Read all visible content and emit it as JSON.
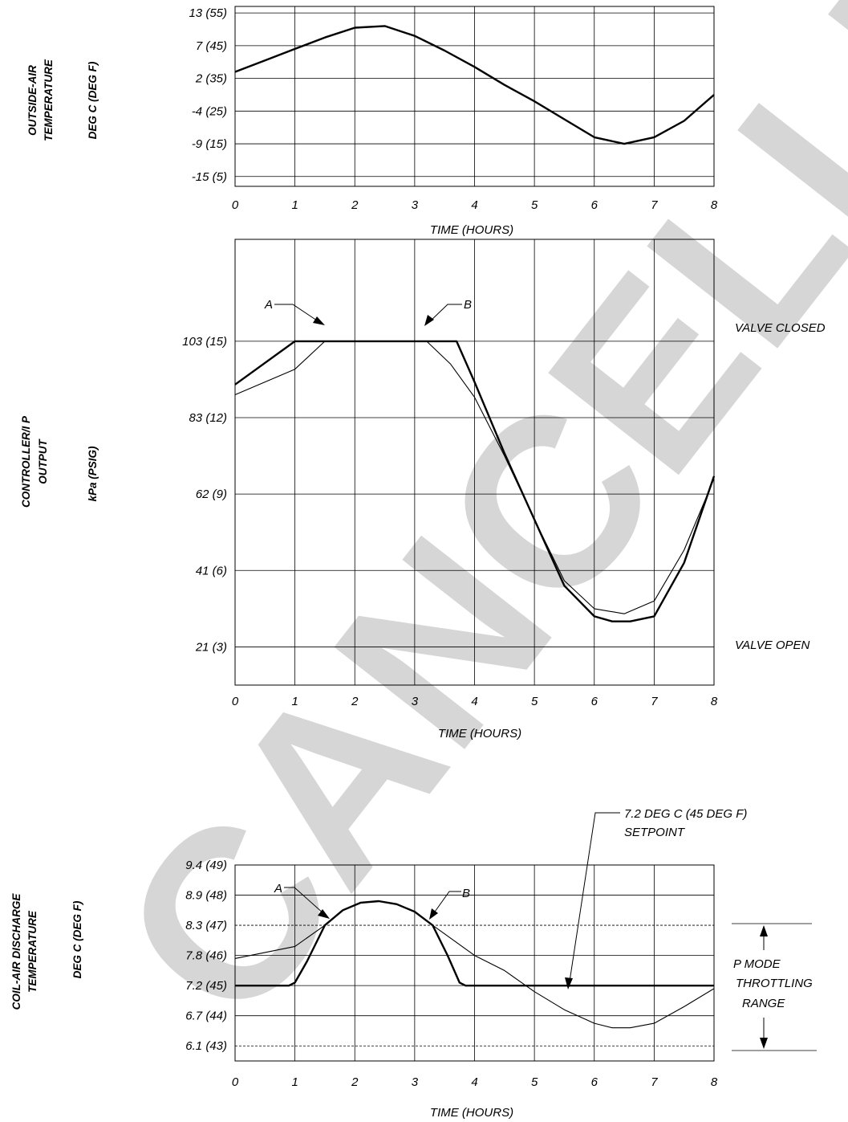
{
  "watermark": "CANCELLED",
  "chart_data": [
    {
      "type": "line",
      "ylabel_lines": [
        "OUTSIDE-AIR",
        "TEMPERATURE"
      ],
      "yunit": "DEG C (DEG F)",
      "xlabel": "TIME (HOURS)",
      "x_ticks": [
        "0",
        "1",
        "2",
        "3",
        "4",
        "5",
        "6",
        "7",
        "8"
      ],
      "y_ticks": [
        "13 (55)",
        "7 (45)",
        "2 (35)",
        "-4 (25)",
        "-9 (15)",
        "-15 (5)"
      ],
      "xlim": [
        0,
        8
      ],
      "ylim": [
        2,
        57
      ],
      "series": [
        {
          "style": "thick",
          "x": [
            0,
            0.5,
            1,
            1.5,
            2,
            2.5,
            3,
            3.5,
            4,
            4.5,
            5,
            5.5,
            6,
            6.5,
            7,
            7.5,
            8
          ],
          "y": [
            37,
            40.5,
            44,
            47.5,
            50.5,
            51,
            48,
            43.5,
            38.5,
            33,
            28,
            22.5,
            17,
            15,
            17,
            22,
            30
          ]
        }
      ]
    },
    {
      "type": "line",
      "ylabel_lines": [
        "CONTROLLER/I P",
        "OUTPUT"
      ],
      "yunit": "kPa (PSIG)",
      "xlabel": "TIME (HOURS)",
      "x_ticks": [
        "0",
        "1",
        "2",
        "3",
        "4",
        "5",
        "6",
        "7",
        "8"
      ],
      "y_ticks": [
        "103 (15)",
        "83 (12)",
        "62 (9)",
        "41 (6)",
        "21 (3)"
      ],
      "xlim": [
        0,
        8
      ],
      "ylim": [
        1.5,
        19
      ],
      "right_labels": [
        "VALVE CLOSED",
        "VALVE OPEN"
      ],
      "annotations": [
        "A",
        "B"
      ],
      "series": [
        {
          "style": "thick",
          "x": [
            0,
            1,
            1.5,
            2,
            2.5,
            3,
            3.5,
            3.7,
            4,
            4.5,
            5,
            5.5,
            6,
            6.3,
            6.6,
            7,
            7.5,
            8
          ],
          "y": [
            13.3,
            15,
            15,
            15,
            15,
            15,
            15,
            15,
            13.4,
            10.6,
            8,
            5.4,
            4.2,
            4.0,
            4.0,
            4.2,
            6.3,
            9.7
          ]
        },
        {
          "style": "thin",
          "x": [
            0,
            1,
            1.5,
            2,
            2.5,
            3,
            3.2,
            3.6,
            4,
            4.5,
            5,
            5.5,
            6,
            6.5,
            7,
            7.5,
            8
          ],
          "y": [
            12.9,
            13.9,
            15,
            15,
            15,
            15,
            15,
            14.1,
            12.8,
            10.5,
            8,
            5.6,
            4.5,
            4.3,
            4.8,
            6.8,
            9.6
          ]
        }
      ]
    },
    {
      "type": "line",
      "ylabel_lines": [
        "COIL-AIR DISCHARGE",
        "TEMPERATURE"
      ],
      "yunit": "DEG C (DEG F)",
      "xlabel": "TIME (HOURS)",
      "x_ticks": [
        "0",
        "1",
        "2",
        "3",
        "4",
        "5",
        "6",
        "7",
        "8"
      ],
      "y_ticks": [
        "9.4 (49)",
        "8.9 (48)",
        "8.3 (47)",
        "7.8 (46)",
        "7.2 (45)",
        "6.7 (44)",
        "6.1 (43)"
      ],
      "xlim": [
        0,
        8
      ],
      "ylim": [
        42.5,
        49
      ],
      "annotations": [
        "A",
        "B"
      ],
      "setpoint_label_lines": [
        "7.2 DEG C (45 DEG F)",
        "SETPOINT"
      ],
      "range_label_lines": [
        "P MODE",
        "THROTTLING",
        "RANGE"
      ],
      "series": [
        {
          "style": "thick",
          "x": [
            0,
            0.9,
            1.0,
            1.2,
            1.5,
            1.8,
            2.1,
            2.4,
            2.7,
            3.0,
            3.3,
            3.55,
            3.75,
            3.85,
            5,
            8
          ],
          "y": [
            45,
            45,
            45.1,
            45.8,
            47.0,
            47.5,
            47.75,
            47.8,
            47.7,
            47.45,
            47.0,
            46.0,
            45.1,
            45.0,
            45.0,
            45.0
          ]
        },
        {
          "style": "thin",
          "x": [
            0,
            1,
            1.5,
            1.8,
            2.1,
            2.4,
            2.7,
            3.0,
            3.3,
            4,
            4.5,
            5,
            5.5,
            6,
            6.3,
            6.6,
            7,
            7.5,
            8
          ],
          "y": [
            45.9,
            46.3,
            47.0,
            47.5,
            47.75,
            47.8,
            47.7,
            47.45,
            47.0,
            46.0,
            45.5,
            44.8,
            44.2,
            43.75,
            43.6,
            43.6,
            43.75,
            44.3,
            44.9
          ]
        }
      ]
    }
  ]
}
